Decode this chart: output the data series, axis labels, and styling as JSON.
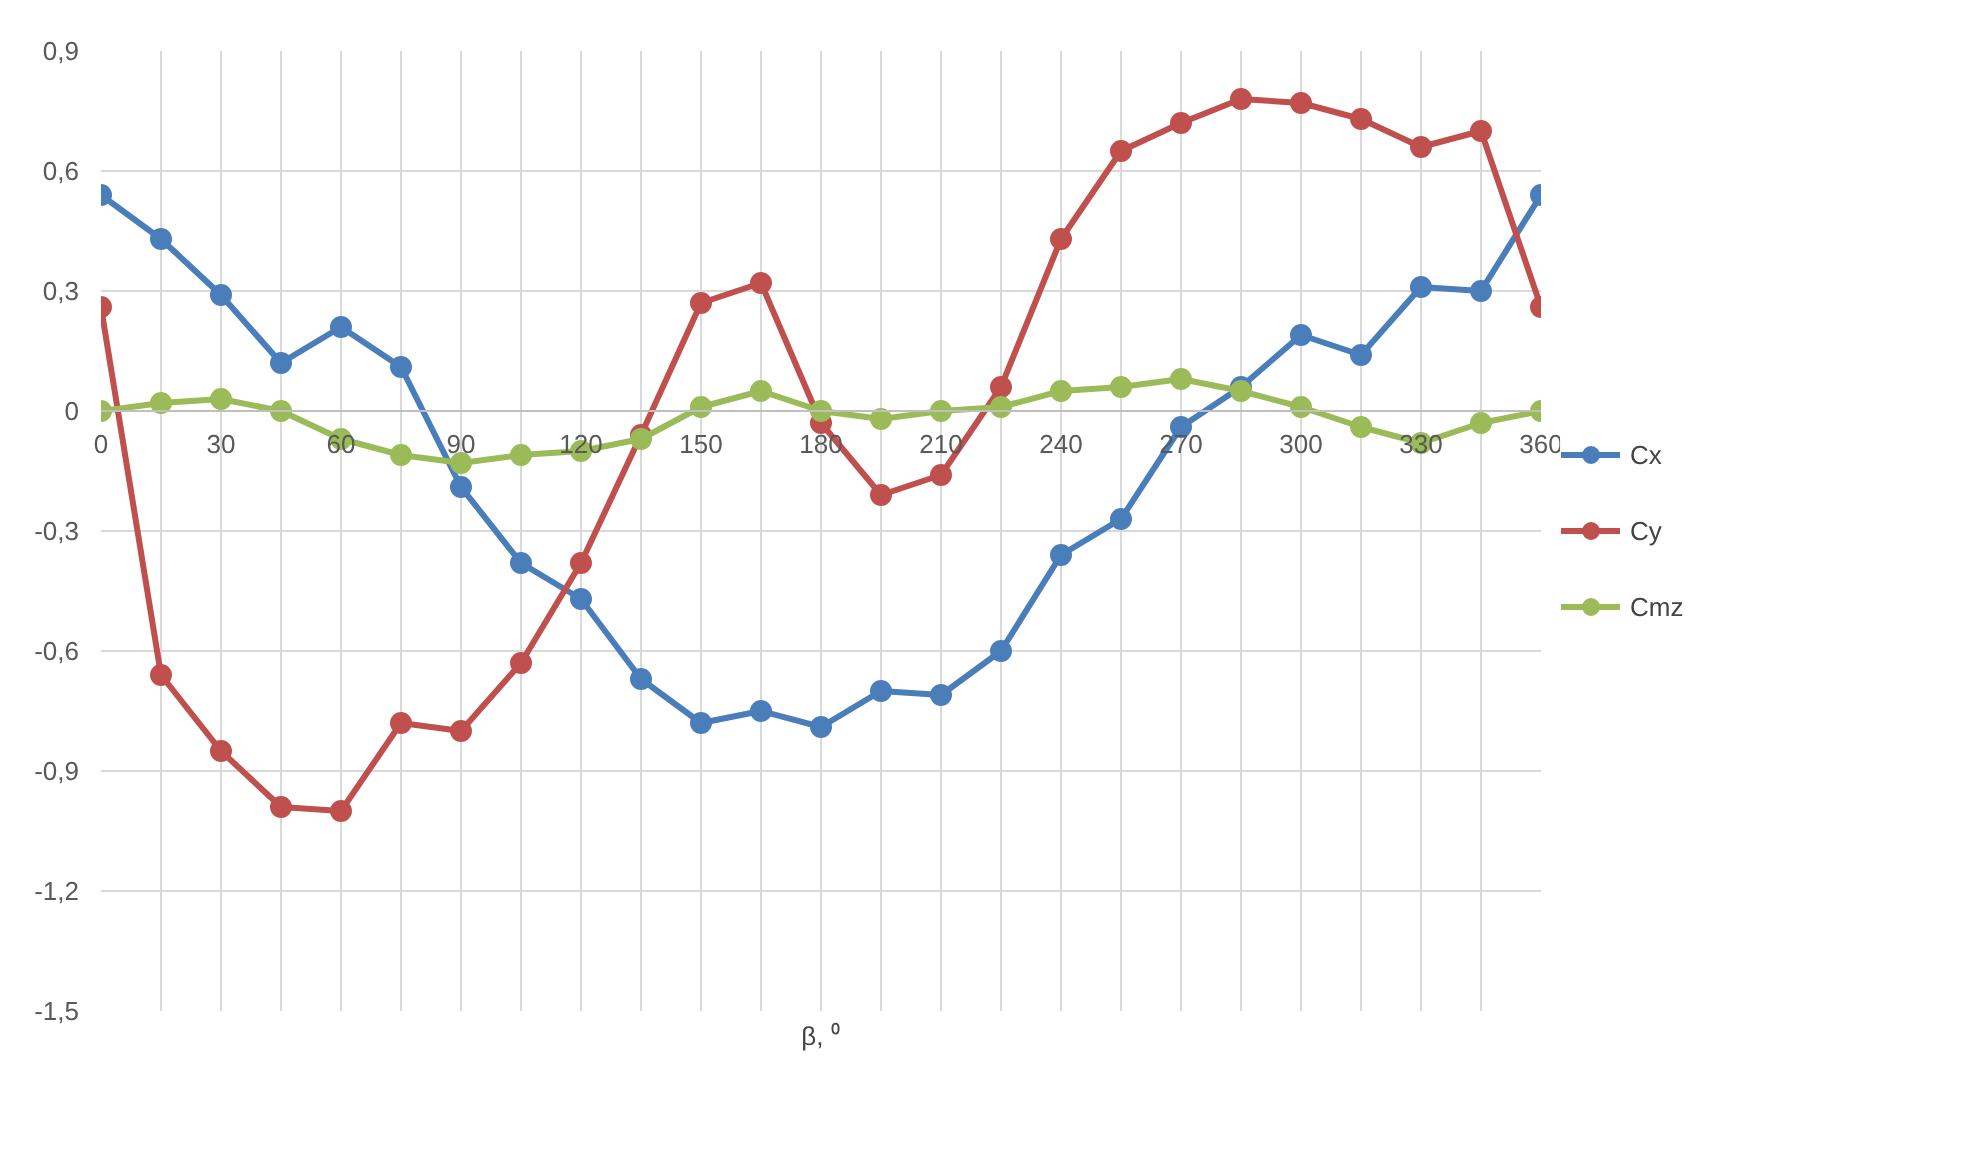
{
  "chart_data": {
    "type": "line",
    "xlabel": "β, ⁰",
    "x": [
      0,
      15,
      30,
      45,
      60,
      75,
      90,
      105,
      120,
      135,
      150,
      165,
      180,
      195,
      210,
      225,
      240,
      255,
      270,
      285,
      300,
      315,
      330,
      345,
      360
    ],
    "series": [
      {
        "name": "Cx",
        "color": "#4a7ebb",
        "values": [
          0.54,
          0.43,
          0.29,
          0.12,
          0.21,
          0.11,
          -0.19,
          -0.38,
          -0.47,
          -0.67,
          -0.78,
          -0.75,
          -0.79,
          -0.7,
          -0.71,
          -0.6,
          -0.36,
          -0.27,
          -0.04,
          0.06,
          0.19,
          0.14,
          0.31,
          0.3,
          0.54
        ]
      },
      {
        "name": "Cy",
        "color": "#c0504d",
        "values": [
          0.26,
          -0.66,
          -0.85,
          -0.99,
          -1.0,
          -0.78,
          -0.8,
          -0.63,
          -0.38,
          -0.06,
          0.27,
          0.32,
          -0.03,
          -0.21,
          -0.16,
          0.06,
          0.43,
          0.65,
          0.72,
          0.78,
          0.77,
          0.73,
          0.66,
          0.7,
          0.26
        ]
      },
      {
        "name": "Cmz",
        "color": "#9bbb59",
        "values": [
          0.0,
          0.02,
          0.03,
          0.0,
          -0.07,
          -0.11,
          -0.13,
          -0.11,
          -0.1,
          -0.07,
          0.01,
          0.05,
          0.0,
          -0.02,
          0.0,
          0.01,
          0.05,
          0.06,
          0.08,
          0.05,
          0.01,
          -0.04,
          -0.08,
          -0.03,
          0.0
        ]
      }
    ],
    "xlim": [
      0,
      360
    ],
    "ylim": [
      -1.5,
      0.9
    ],
    "xticks": [
      0,
      {
        "value": 15,
        "label": null
      },
      30,
      {
        "value": 45,
        "label": null
      },
      60,
      {
        "value": 75,
        "label": null
      },
      90,
      {
        "value": 105,
        "label": null
      },
      120,
      {
        "value": 135,
        "label": null
      },
      150,
      {
        "value": 165,
        "label": null
      },
      180,
      {
        "value": 195,
        "label": null
      },
      210,
      {
        "value": 225,
        "label": null
      },
      240,
      {
        "value": 255,
        "label": null
      },
      270,
      {
        "value": 285,
        "label": null
      },
      300,
      {
        "value": 315,
        "label": null
      },
      330,
      {
        "value": 345,
        "label": null
      },
      360
    ],
    "yticks": [
      {
        "value": -1.5,
        "label": "-1,5"
      },
      {
        "value": -1.2,
        "label": "-1,2"
      },
      {
        "value": -0.9,
        "label": "-0,9"
      },
      {
        "value": -0.6,
        "label": "-0,6"
      },
      {
        "value": -0.3,
        "label": "-0,3"
      },
      0,
      {
        "value": 0.3,
        "label": "0,3"
      },
      {
        "value": 0.6,
        "label": "0,6"
      },
      {
        "value": 0.9,
        "label": "0,9"
      }
    ],
    "grid": true,
    "legend": "right",
    "marker": "circle",
    "line_style": "solid"
  }
}
